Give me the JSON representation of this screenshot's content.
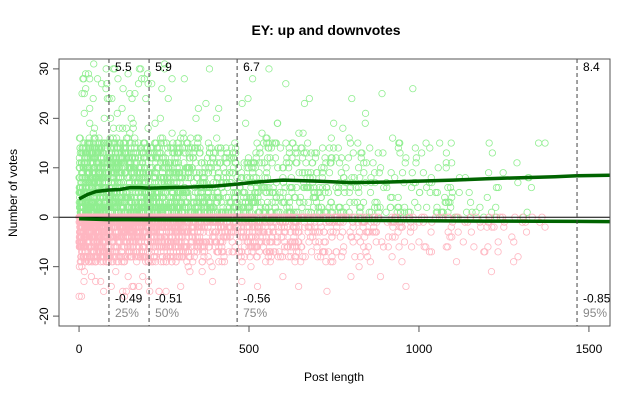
{
  "chart_data": {
    "type": "scatter",
    "title": "EY: up and downvotes",
    "xlabel": "Post length",
    "ylabel": "Number of votes",
    "xlim": [
      -59,
      1562
    ],
    "ylim": [
      -22,
      32
    ],
    "xticks": [
      0,
      500,
      1000,
      1500
    ],
    "yticks": [
      -20,
      -10,
      0,
      10,
      20,
      30
    ],
    "grid": false,
    "colors": {
      "up": "#90ee90",
      "down": "#ffb6c1",
      "smooth": "#006400"
    },
    "series": [
      {
        "name": "upvotes",
        "type": "scatter",
        "count": 2200
      },
      {
        "name": "downvotes",
        "type": "scatter",
        "count": 2200
      },
      {
        "name": "upvotes smooth",
        "type": "line",
        "x": [
          0,
          25,
          50,
          88,
          120,
          150,
          180,
          206,
          260,
          320,
          400,
          465,
          520,
          600,
          700,
          800,
          900,
          1000,
          1100,
          1200,
          1300,
          1400,
          1465,
          1562
        ],
        "y": [
          3.7,
          4.6,
          5.2,
          5.5,
          5.6,
          6.0,
          6.0,
          5.9,
          6.0,
          6.1,
          6.3,
          6.7,
          7.1,
          7.5,
          7.3,
          7.0,
          7.1,
          7.3,
          7.5,
          7.8,
          8.0,
          8.2,
          8.4,
          8.5
        ]
      },
      {
        "name": "downvotes smooth",
        "type": "line",
        "x": [
          0,
          88,
          206,
          465,
          800,
          1200,
          1465,
          1562
        ],
        "y": [
          -0.3,
          -0.49,
          -0.51,
          -0.56,
          -0.65,
          -0.78,
          -0.85,
          -0.88
        ]
      }
    ],
    "quantiles": [
      {
        "x": 88,
        "pct": "25%",
        "up": "5.5",
        "down": "-0.49"
      },
      {
        "x": 206,
        "pct": "50%",
        "up": "5.9",
        "down": "-0.51"
      },
      {
        "x": 465,
        "pct": "75%",
        "up": "6.7",
        "down": "-0.56"
      },
      {
        "x": 1465,
        "pct": "95%",
        "up": "8.4",
        "down": "-0.85"
      }
    ]
  }
}
